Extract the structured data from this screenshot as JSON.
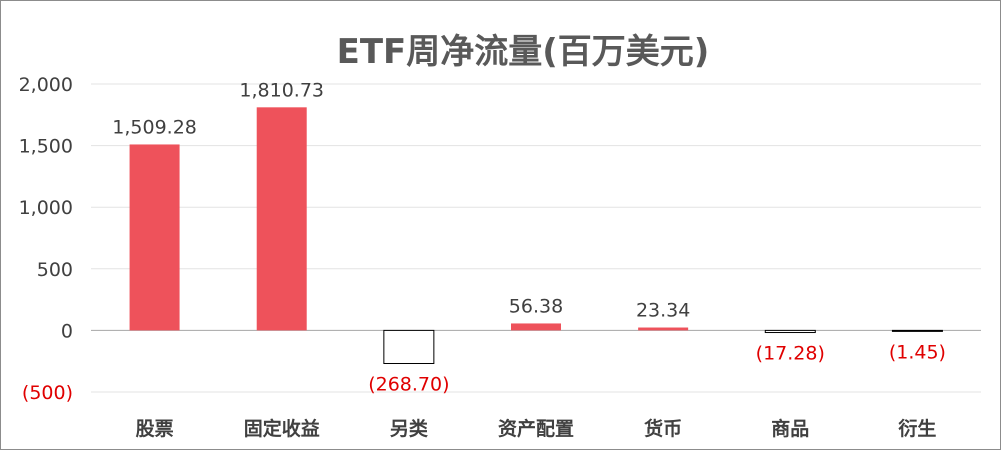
{
  "chart_data": {
    "type": "bar",
    "title": "ETF周净流量(百万美元)",
    "categories": [
      "股票",
      "固定收益",
      "另类",
      "资产配置",
      "货币",
      "商品",
      "衍生"
    ],
    "values": [
      1509.28,
      1810.73,
      -268.7,
      56.38,
      23.34,
      -17.28,
      -1.45
    ],
    "value_labels": [
      "1,509.28",
      "1,810.73",
      "(268.70)",
      "56.38",
      "23.34",
      "(17.28)",
      "(1.45)"
    ],
    "ylim": [
      -500,
      2000
    ],
    "yticks": [
      -500,
      0,
      500,
      1000,
      1500,
      2000
    ],
    "ytick_labels": [
      "(500)",
      "0",
      "500",
      "1,000",
      "1,500",
      "2,000"
    ],
    "xlabel": "",
    "ylabel": "",
    "grid": true,
    "legend": "none",
    "colors": {
      "positive_bar": "#ee525b",
      "negative_bar_fill": "#ffffff",
      "negative_bar_stroke": "#000000",
      "negative_text": "#e00000",
      "text": "#404040",
      "title": "#595959",
      "grid": "#e3e3e3",
      "axis": "#a6a6a6"
    }
  }
}
